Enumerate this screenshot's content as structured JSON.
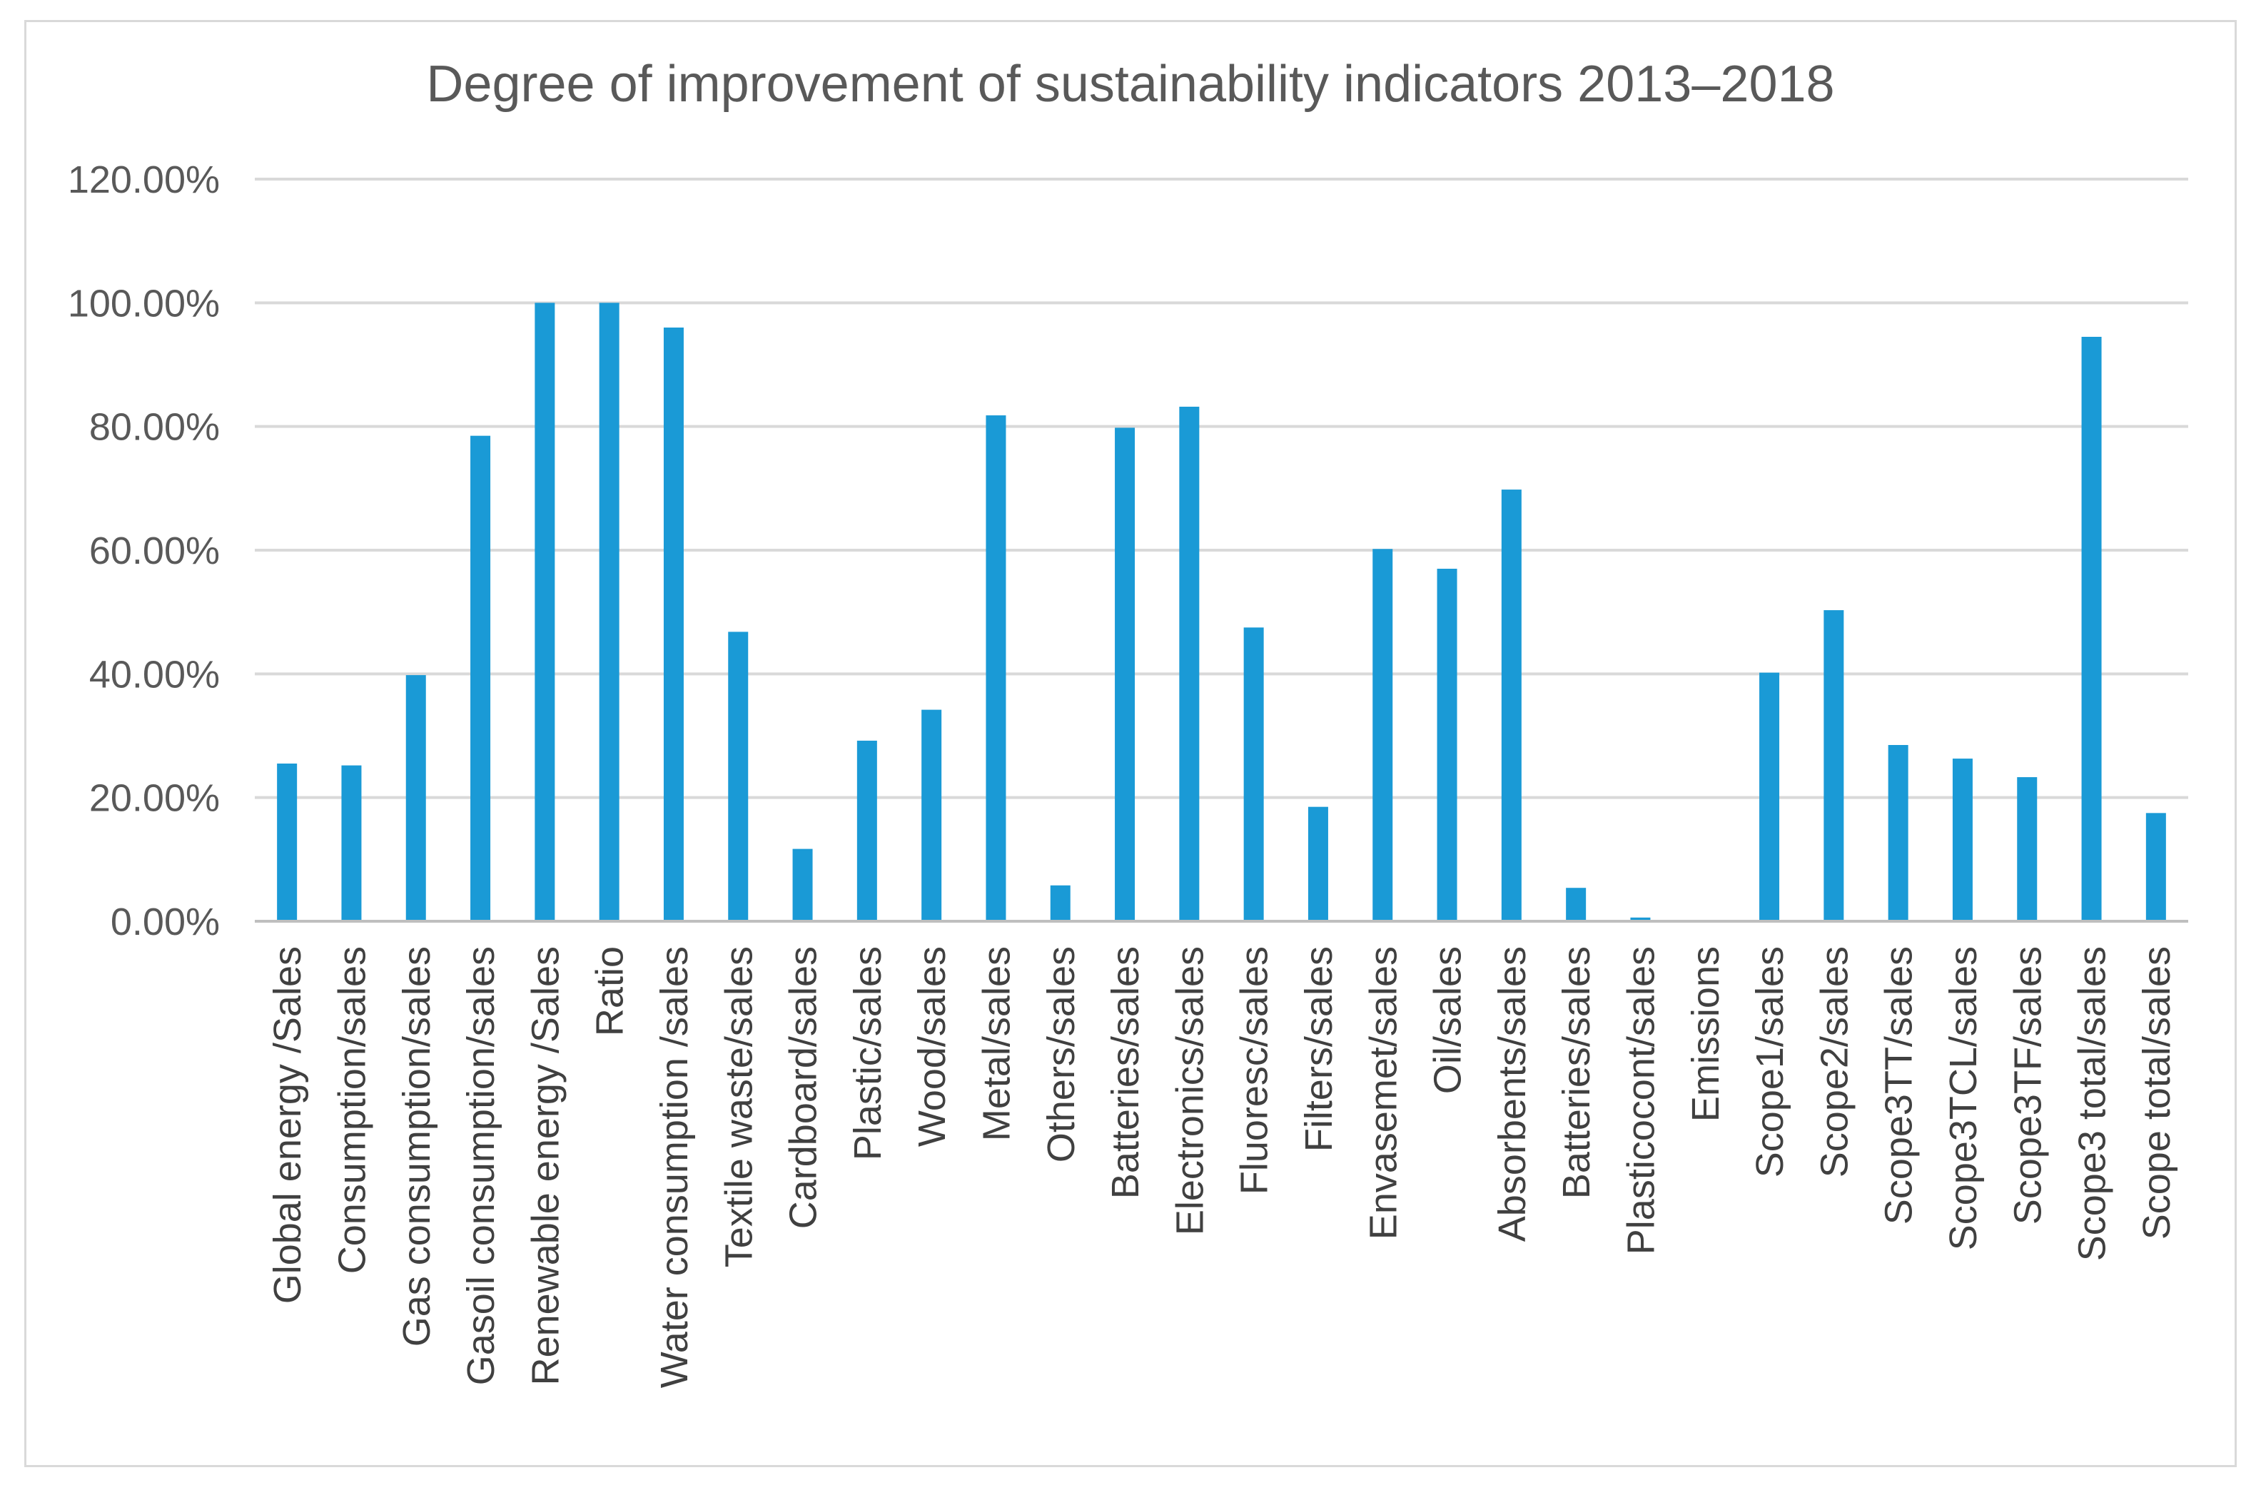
{
  "chart_data": {
    "type": "bar",
    "title": "Degree of improvement of sustainability indicators 2013–2018",
    "xlabel": "",
    "ylabel": "",
    "ylim": [
      0,
      120
    ],
    "ytick_step": 20,
    "ytick_labels": [
      "0.00%",
      "20.00%",
      "40.00%",
      "60.00%",
      "80.00%",
      "100.00%",
      "120.00%"
    ],
    "grid": true,
    "legend": "none",
    "bar_color": "#1a9ad6",
    "categories": [
      "Global energy /Sales",
      "Consumption/sales",
      "Gas consumption/sales",
      "Gasoil consumption/sales",
      "Renewable energy /Sales",
      "Ratio",
      "Water consumption /sales",
      "Textile waste/sales",
      "Cardboard/sales",
      "Plastic/sales",
      "Wood/sales",
      "Metal/sales",
      "Others/sales",
      "Batteries/sales",
      "Electronics/sales",
      "Fluoresc/sales",
      "Filters/sales",
      "Envasemet/sales",
      "Oil/sales",
      "Absorbents/sales",
      "Batteries/sales",
      "Plasticocont/sales",
      "Emissions",
      "Scope1/sales",
      "Scope2/sales",
      "Scope3TT/sales",
      "Scope3TCL/sales",
      "Scope3TF/sales",
      "Scope3 total/sales",
      "Scope total/sales"
    ],
    "values": [
      25.5,
      25.2,
      39.8,
      78.5,
      100.0,
      100.0,
      96.0,
      46.8,
      11.7,
      29.2,
      34.2,
      81.8,
      5.8,
      79.8,
      83.2,
      47.5,
      18.5,
      60.2,
      57.0,
      69.8,
      5.4,
      0.6,
      0.0,
      40.2,
      50.3,
      28.5,
      26.3,
      23.3,
      94.5,
      17.5
    ]
  }
}
